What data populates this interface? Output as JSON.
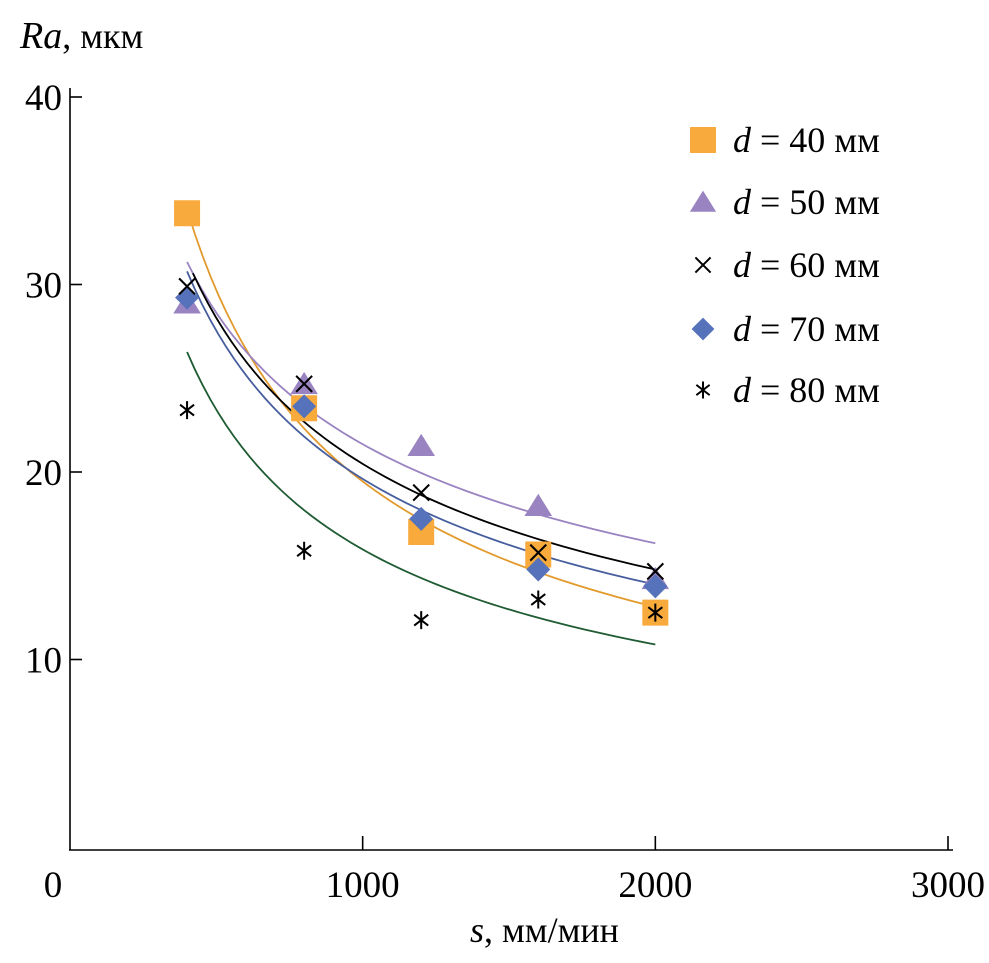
{
  "chart_data": {
    "type": "scatter",
    "title": "",
    "xlabel": {
      "var": "s",
      "unit": ", мм/мин"
    },
    "ylabel": {
      "var": "Ra",
      "unit": ", мкм"
    },
    "xlim": [
      0,
      3000
    ],
    "ylim": [
      0,
      40
    ],
    "xticks": [
      0,
      1000,
      2000,
      3000
    ],
    "yticks": [
      10,
      20,
      30,
      40
    ],
    "grid": false,
    "legend_position": "top-right",
    "x": [
      400,
      800,
      1200,
      1600,
      2000
    ],
    "series": [
      {
        "name": "d = 40 мм",
        "legend": {
          "var": "d",
          "rest": " = 40 мм"
        },
        "marker": "square",
        "marker_color": "#F8AA3C",
        "line_color": "#E29A2C",
        "values": [
          33.8,
          23.4,
          16.8,
          15.6,
          12.5
        ],
        "fit": {
          "type": "power",
          "x_range": [
            400,
            2000
          ],
          "y_start": 34.0,
          "y_end": 12.8
        }
      },
      {
        "name": "d = 50 мм",
        "legend": {
          "var": "d",
          "rest": " = 50 мм"
        },
        "marker": "triangle",
        "marker_color": "#9983C1",
        "line_color": "#9983C1",
        "values": [
          29.0,
          24.7,
          21.4,
          18.2,
          14.3
        ],
        "fit": {
          "type": "power",
          "x_range": [
            400,
            2000
          ],
          "y_start": 31.2,
          "y_end": 16.2
        }
      },
      {
        "name": "d = 60 мм",
        "legend": {
          "var": "d",
          "rest": " = 60 мм"
        },
        "marker": "cross",
        "marker_color": "#000000",
        "line_color": "#000000",
        "values": [
          29.9,
          24.7,
          18.9,
          15.7,
          14.7
        ],
        "fit": {
          "type": "power",
          "x_range": [
            420,
            2000
          ],
          "y_start": 30.6,
          "y_end": 14.8
        }
      },
      {
        "name": "d = 70 мм",
        "legend": {
          "var": "d",
          "rest": " = 70 мм"
        },
        "marker": "diamond",
        "marker_color": "#5572BA",
        "line_color": "#475E9E",
        "values": [
          29.3,
          23.5,
          17.5,
          14.8,
          13.9
        ],
        "fit": {
          "type": "power",
          "x_range": [
            400,
            2000
          ],
          "y_start": 30.7,
          "y_end": 14.0
        }
      },
      {
        "name": "d = 80 мм",
        "legend": {
          "var": "d",
          "rest": " = 80 мм"
        },
        "marker": "asterisk",
        "marker_color": "#000000",
        "line_color": "#1F5C33",
        "values": [
          23.3,
          15.8,
          12.1,
          13.2,
          12.5
        ],
        "fit": {
          "type": "power",
          "x_range": [
            400,
            2000
          ],
          "y_start": 26.4,
          "y_end": 10.8
        }
      }
    ]
  }
}
